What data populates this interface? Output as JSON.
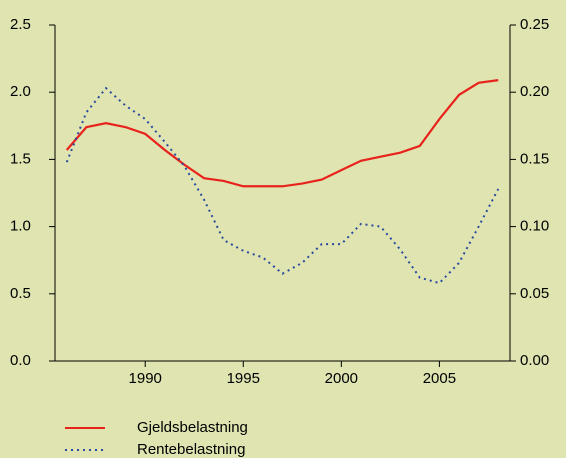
{
  "chart_data": {
    "type": "line",
    "x": [
      1986,
      1987,
      1988,
      1989,
      1990,
      1991,
      1992,
      1993,
      1994,
      1995,
      1996,
      1997,
      1998,
      1999,
      2000,
      2001,
      2002,
      2003,
      2004,
      2005,
      2006,
      2007,
      2008
    ],
    "series": [
      {
        "name": "Gjeldsbelastning",
        "color": "#e8231c",
        "style": "solid",
        "values": [
          1.57,
          1.74,
          1.77,
          1.74,
          1.69,
          1.57,
          1.46,
          1.36,
          1.34,
          1.3,
          1.3,
          1.3,
          1.32,
          1.35,
          1.42,
          1.49,
          1.52,
          1.55,
          1.6,
          1.8,
          1.98,
          2.07,
          2.09
        ]
      },
      {
        "name": "Rentebelastning",
        "color": "#2a4a9e",
        "style": "dotted",
        "axis": "y2",
        "values": [
          0.148,
          0.185,
          0.203,
          0.19,
          0.18,
          0.163,
          0.145,
          0.12,
          0.09,
          0.082,
          0.077,
          0.065,
          0.073,
          0.087,
          0.087,
          0.102,
          0.1,
          0.083,
          0.062,
          0.058,
          0.073,
          0.1,
          0.128
        ]
      }
    ],
    "xlim": [
      1985.4,
      2008.6
    ],
    "xticks": [
      1990,
      1995,
      2000,
      2005
    ],
    "ylim": [
      0,
      2.5
    ],
    "yticks": [
      {
        "value": 0,
        "label": "0.0"
      },
      0.5,
      {
        "value": 1,
        "label": "1.0"
      },
      1.5,
      {
        "value": 2,
        "label": "2.0"
      },
      2.5
    ],
    "y2lim": [
      0,
      0.25
    ],
    "y2ticks": [
      {
        "value": 0,
        "label": "0.00"
      },
      0.05,
      {
        "value": 0.1,
        "label": "0.10"
      },
      0.15,
      {
        "value": 0.2,
        "label": "0.20"
      },
      0.25
    ]
  }
}
